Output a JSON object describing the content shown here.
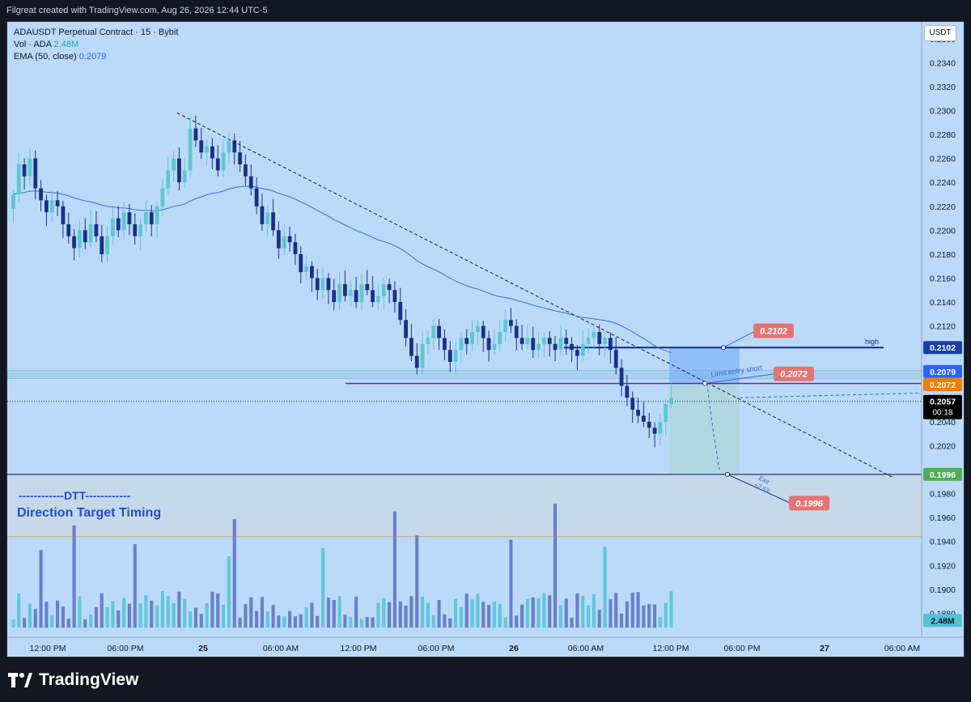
{
  "header": {
    "title": "Filgreat created with TradingView.com, Aug 26, 2026 12:44 UTC-5"
  },
  "legend": {
    "symbol": "ADAUSDT Perpetual Contract · 15 · Bybit",
    "vol_label": "Vol · ADA",
    "vol_value": "2.48M",
    "ema_label": "EMA (50, close)",
    "ema_value": "0.2079"
  },
  "currency": "USDT",
  "brand": {
    "name": "TradingView"
  },
  "colors": {
    "background": "#bbdaf9",
    "candle_up": "#5cc8cf",
    "candle_down": "#1a2f8c",
    "ema": "#3d6bd6",
    "vol_up": "#4fc3d6",
    "vol_down": "#5a6fc4",
    "sell_label": "#e57373",
    "green_label": "#4caf50"
  },
  "chart_data": {
    "type": "candlestick",
    "y_range": [
      0.186,
      0.237
    ],
    "y_ticks": [
      "0.2360",
      "0.2340",
      "0.2320",
      "0.2300",
      "0.2280",
      "0.2260",
      "0.2240",
      "0.2220",
      "0.2200",
      "0.2180",
      "0.2160",
      "0.2140",
      "0.2120",
      "0.2100",
      "0.2080",
      "0.2060",
      "0.2040",
      "0.2020",
      "0.1980",
      "0.1960",
      "0.1940",
      "0.1920",
      "0.1900",
      "0.1880"
    ],
    "x_ticks": [
      "12:00 PM",
      "06:00 PM",
      "25",
      "06:00 AM",
      "12:00 PM",
      "06:00 PM",
      "26",
      "06:00 AM",
      "12:00 PM",
      "06:00 PM",
      "27",
      "06:00 AM"
    ],
    "closes": [
      0.223,
      0.2255,
      0.2245,
      0.226,
      0.2235,
      0.2225,
      0.2215,
      0.2225,
      0.222,
      0.2205,
      0.2195,
      0.2185,
      0.22,
      0.219,
      0.2205,
      0.2195,
      0.218,
      0.2195,
      0.221,
      0.22,
      0.2215,
      0.2205,
      0.2195,
      0.2205,
      0.2215,
      0.2205,
      0.222,
      0.2235,
      0.225,
      0.226,
      0.224,
      0.225,
      0.2285,
      0.2275,
      0.2265,
      0.227,
      0.226,
      0.225,
      0.2265,
      0.2275,
      0.2265,
      0.2255,
      0.2245,
      0.2235,
      0.222,
      0.2205,
      0.2215,
      0.22,
      0.2185,
      0.2195,
      0.219,
      0.218,
      0.2165,
      0.217,
      0.216,
      0.215,
      0.216,
      0.215,
      0.214,
      0.2155,
      0.2145,
      0.215,
      0.214,
      0.2155,
      0.215,
      0.214,
      0.2145,
      0.2155,
      0.215,
      0.214,
      0.2125,
      0.211,
      0.2095,
      0.2085,
      0.2105,
      0.211,
      0.212,
      0.211,
      0.21,
      0.209,
      0.21,
      0.211,
      0.2105,
      0.2115,
      0.212,
      0.211,
      0.21,
      0.2105,
      0.2115,
      0.2125,
      0.212,
      0.211,
      0.2105,
      0.211,
      0.21,
      0.2105,
      0.211,
      0.2105,
      0.21,
      0.211,
      0.2105,
      0.21,
      0.2095,
      0.2105,
      0.211,
      0.2115,
      0.2105,
      0.211,
      0.21,
      0.2085,
      0.207,
      0.206,
      0.205,
      0.2045,
      0.204,
      0.2035,
      0.203,
      0.204,
      0.2055,
      0.206
    ],
    "ema_value": 0.2079,
    "volume_label": "2.48M",
    "annotations": {
      "high_price": "0.2102",
      "high_text": "high",
      "entry_price": "0.2072",
      "entry_text": "Limit entry short",
      "exit_price": "0.1996",
      "exit_text": "Exit",
      "exit_sub": "+2.53",
      "ema_axis": "0.2079",
      "current_price": "0.2057",
      "countdown": "00:18"
    },
    "indicator_title": "------------DTT------------",
    "indicator_subtitle": "Direction Target Timing"
  }
}
